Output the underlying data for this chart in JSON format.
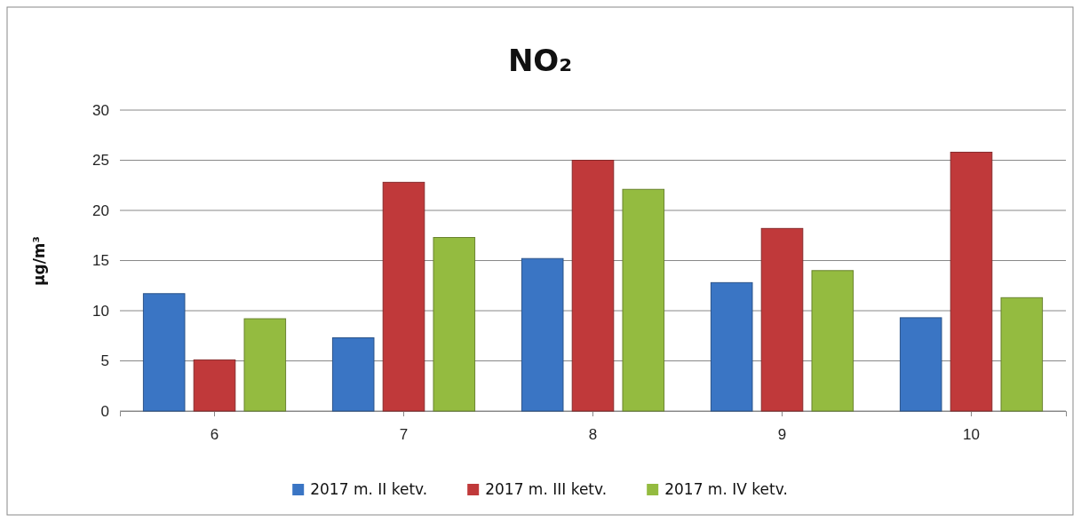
{
  "chart_data": {
    "type": "bar",
    "title": "NO₂",
    "ylabel": "µg/m³",
    "categories": [
      "6",
      "7",
      "8",
      "9",
      "10"
    ],
    "series": [
      {
        "name": "2017 m. II ketv.",
        "color": "#3a75c4",
        "values": [
          11.7,
          7.3,
          15.2,
          12.8,
          9.3
        ]
      },
      {
        "name": "2017 m. III ketv.",
        "color": "#c0393a",
        "values": [
          5.1,
          22.8,
          25.0,
          18.2,
          25.8
        ]
      },
      {
        "name": "2017 m. IV ketv.",
        "color": "#94bb40",
        "values": [
          9.2,
          17.3,
          22.1,
          14.0,
          11.3
        ]
      }
    ],
    "ylim": [
      0,
      30
    ],
    "yticks": [
      0,
      5,
      10,
      15,
      20,
      25,
      30
    ],
    "grid": "y",
    "legend": "bottom"
  }
}
